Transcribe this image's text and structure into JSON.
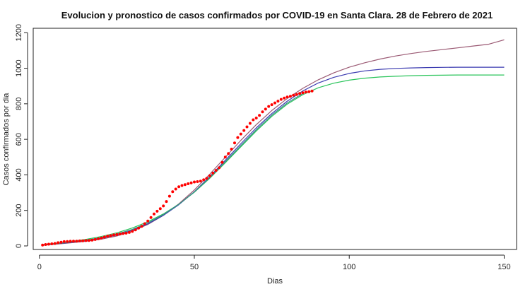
{
  "chart_data": {
    "type": "line",
    "title": "Evolucion y pronostico de casos confirmados por COVID-19 en Santa Clara. 28 de Febrero de 2021",
    "xlabel": "Dias",
    "ylabel": "Casos confirmados por dia",
    "xlim": [
      -2,
      154
    ],
    "ylim": [
      -20,
      1225
    ],
    "x_ticks": [
      0,
      50,
      100,
      150
    ],
    "y_ticks": [
      0,
      200,
      400,
      600,
      800,
      1000,
      1200
    ],
    "grid": false,
    "legend": "none",
    "series": [
      {
        "kind": "line",
        "color": "#9b5a74",
        "x": [
          1,
          5,
          10,
          15,
          20,
          25,
          30,
          35,
          40,
          45,
          50,
          55,
          60,
          65,
          70,
          75,
          80,
          85,
          90,
          95,
          100,
          105,
          110,
          115,
          120,
          125,
          130,
          135,
          140,
          145,
          150
        ],
        "y": [
          4,
          9,
          17,
          26,
          38,
          56,
          83,
          121,
          172,
          237,
          315,
          404,
          499,
          594,
          683,
          762,
          830,
          887,
          935,
          974,
          1006,
          1031,
          1052,
          1069,
          1083,
          1095,
          1105,
          1115,
          1125,
          1135,
          1160
        ]
      },
      {
        "kind": "line",
        "color": "#3b3bb0",
        "x": [
          1,
          5,
          10,
          15,
          20,
          25,
          30,
          35,
          40,
          45,
          50,
          55,
          60,
          65,
          70,
          75,
          80,
          85,
          90,
          95,
          100,
          105,
          110,
          115,
          120,
          125,
          130,
          135,
          140,
          145,
          150
        ],
        "y": [
          5,
          11,
          19,
          29,
          43,
          62,
          88,
          124,
          172,
          232,
          305,
          390,
          482,
          575,
          664,
          745,
          815,
          872,
          917,
          949,
          971,
          985,
          994,
          999,
          1002,
          1004,
          1005,
          1006,
          1006,
          1006,
          1006
        ]
      },
      {
        "kind": "line",
        "color": "#29c45a",
        "x": [
          1,
          5,
          10,
          15,
          20,
          25,
          30,
          35,
          40,
          45,
          50,
          55,
          60,
          65,
          70,
          75,
          80,
          85,
          90,
          95,
          100,
          105,
          110,
          115,
          120,
          125,
          130,
          135,
          140,
          145,
          150
        ],
        "y": [
          7,
          14,
          24,
          37,
          53,
          74,
          101,
          136,
          180,
          235,
          302,
          381,
          468,
          558,
          647,
          729,
          798,
          851,
          890,
          916,
          933,
          944,
          951,
          955,
          958,
          960,
          961,
          962,
          962,
          962,
          962
        ]
      },
      {
        "kind": "line",
        "color": "#3a8a8a",
        "x": [
          1,
          5,
          10,
          15,
          20,
          25,
          30,
          35,
          40,
          45,
          50,
          55,
          60,
          65,
          70,
          75,
          80,
          85
        ],
        "y": [
          6,
          12,
          21,
          32,
          47,
          67,
          93,
          129,
          176,
          234,
          304,
          385,
          474,
          565,
          654,
          736,
          805,
          858
        ]
      },
      {
        "kind": "points",
        "color": "#ff0000",
        "x": [
          1,
          2,
          3,
          4,
          5,
          6,
          7,
          8,
          9,
          10,
          11,
          12,
          13,
          14,
          15,
          16,
          17,
          18,
          19,
          20,
          21,
          22,
          23,
          24,
          25,
          26,
          27,
          28,
          29,
          30,
          31,
          32,
          33,
          34,
          35,
          36,
          37,
          38,
          39,
          40,
          41,
          42,
          43,
          44,
          45,
          46,
          47,
          48,
          49,
          50,
          51,
          52,
          53,
          54,
          55,
          56,
          57,
          58,
          59,
          60,
          61,
          62,
          63,
          64,
          65,
          66,
          67,
          68,
          69,
          70,
          71,
          72,
          73,
          74,
          75,
          76,
          77,
          78,
          79,
          80,
          81,
          82,
          83,
          84,
          85,
          86,
          87,
          88
        ],
        "y": [
          5,
          8,
          10,
          12,
          14,
          18,
          21,
          24,
          25,
          26,
          27,
          27,
          28,
          29,
          30,
          31,
          33,
          36,
          40,
          45,
          50,
          55,
          58,
          62,
          64,
          67,
          70,
          72,
          76,
          82,
          90,
          100,
          110,
          125,
          140,
          160,
          180,
          195,
          210,
          225,
          250,
          280,
          305,
          320,
          333,
          340,
          345,
          350,
          355,
          360,
          362,
          365,
          372,
          380,
          395,
          410,
          425,
          440,
          470,
          500,
          520,
          545,
          580,
          610,
          630,
          650,
          670,
          690,
          710,
          720,
          735,
          755,
          770,
          785,
          795,
          805,
          815,
          825,
          832,
          838,
          842,
          848,
          852,
          858,
          862,
          866,
          868,
          872
        ]
      }
    ]
  }
}
